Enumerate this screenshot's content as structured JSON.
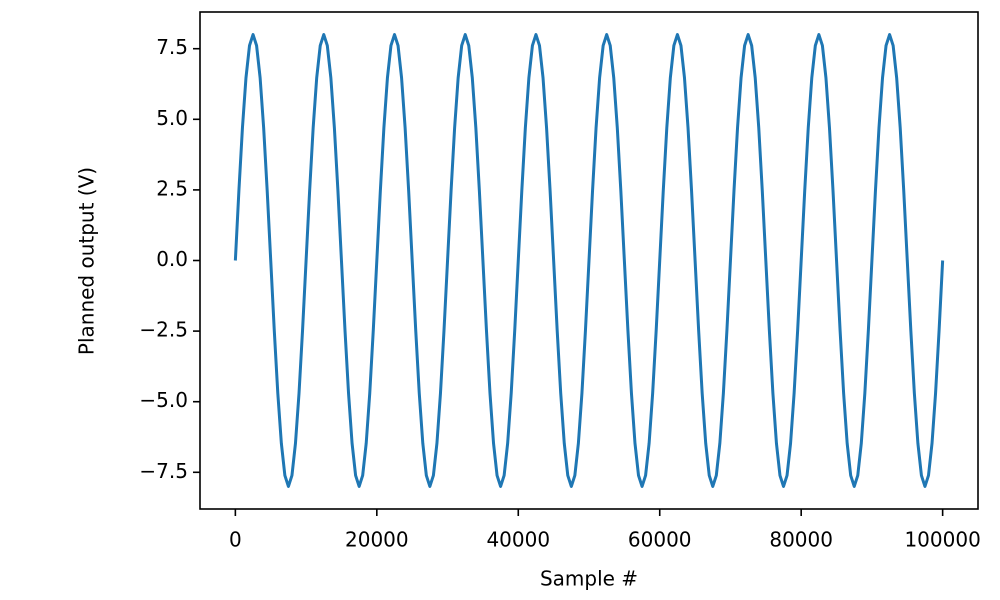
{
  "chart_data": {
    "type": "line",
    "x_label": "Sample #",
    "y_label": "Planned output (V)",
    "x": [
      0,
      500,
      1000,
      1500,
      2000,
      2500,
      3000,
      3500,
      4000,
      4500,
      5000,
      5500,
      6000,
      6500,
      7000,
      7500,
      8000,
      8500,
      9000,
      9500,
      10000,
      10500,
      11000,
      11500,
      12000,
      12500,
      13000,
      13500,
      14000,
      14500,
      15000,
      15500,
      16000,
      16500,
      17000,
      17500,
      18000,
      18500,
      19000,
      19500,
      20000,
      20500,
      21000,
      21500,
      22000,
      22500,
      23000,
      23500,
      24000,
      24500,
      25000,
      25500,
      26000,
      26500,
      27000,
      27500,
      28000,
      28500,
      29000,
      29500,
      30000,
      30500,
      31000,
      31500,
      32000,
      32500,
      33000,
      33500,
      34000,
      34500,
      35000,
      35500,
      36000,
      36500,
      37000,
      37500,
      38000,
      38500,
      39000,
      39500,
      40000,
      40500,
      41000,
      41500,
      42000,
      42500,
      43000,
      43500,
      44000,
      44500,
      45000,
      45500,
      46000,
      46500,
      47000,
      47500,
      48000,
      48500,
      49000,
      49500,
      50000,
      50500,
      51000,
      51500,
      52000,
      52500,
      53000,
      53500,
      54000,
      54500,
      55000,
      55500,
      56000,
      56500,
      57000,
      57500,
      58000,
      58500,
      59000,
      59500,
      60000,
      60500,
      61000,
      61500,
      62000,
      62500,
      63000,
      63500,
      64000,
      64500,
      65000,
      65500,
      66000,
      66500,
      67000,
      67500,
      68000,
      68500,
      69000,
      69500,
      70000,
      70500,
      71000,
      71500,
      72000,
      72500,
      73000,
      73500,
      74000,
      74500,
      75000,
      75500,
      76000,
      76500,
      77000,
      77500,
      78000,
      78500,
      79000,
      79500,
      80000,
      80500,
      81000,
      81500,
      82000,
      82500,
      83000,
      83500,
      84000,
      84500,
      85000,
      85500,
      86000,
      86500,
      87000,
      87500,
      88000,
      88500,
      89000,
      89500,
      90000,
      90500,
      91000,
      91500,
      92000,
      92500,
      93000,
      93500,
      94000,
      94500,
      95000,
      95500,
      96000,
      96500,
      97000,
      97500,
      98000,
      98500,
      99000,
      99500,
      100000
    ],
    "series": [
      {
        "color": "#1f77b4",
        "values": [
          0,
          2.47,
          4.7,
          6.47,
          7.61,
          8,
          7.61,
          6.47,
          4.7,
          2.47,
          0,
          -2.47,
          -4.7,
          -6.47,
          -7.61,
          -8,
          -7.61,
          -6.47,
          -4.7,
          -2.47,
          0,
          2.47,
          4.7,
          6.47,
          7.61,
          8,
          7.61,
          6.47,
          4.7,
          2.47,
          0,
          -2.47,
          -4.7,
          -6.47,
          -7.61,
          -8,
          -7.61,
          -6.47,
          -4.7,
          -2.47,
          0,
          2.47,
          4.7,
          6.47,
          7.61,
          8,
          7.61,
          6.47,
          4.7,
          2.47,
          0,
          -2.47,
          -4.7,
          -6.47,
          -7.61,
          -8,
          -7.61,
          -6.47,
          -4.7,
          -2.47,
          0,
          2.47,
          4.7,
          6.47,
          7.61,
          8,
          7.61,
          6.47,
          4.7,
          2.47,
          0,
          -2.47,
          -4.7,
          -6.47,
          -7.61,
          -8,
          -7.61,
          -6.47,
          -4.7,
          -2.47,
          0,
          2.47,
          4.7,
          6.47,
          7.61,
          8,
          7.61,
          6.47,
          4.7,
          2.47,
          0,
          -2.47,
          -4.7,
          -6.47,
          -7.61,
          -8,
          -7.61,
          -6.47,
          -4.7,
          -2.47,
          0,
          2.47,
          4.7,
          6.47,
          7.61,
          8,
          7.61,
          6.47,
          4.7,
          2.47,
          0,
          -2.47,
          -4.7,
          -6.47,
          -7.61,
          -8,
          -7.61,
          -6.47,
          -4.7,
          -2.47,
          0,
          2.47,
          4.7,
          6.47,
          7.61,
          8,
          7.61,
          6.47,
          4.7,
          2.47,
          0,
          -2.47,
          -4.7,
          -6.47,
          -7.61,
          -8,
          -7.61,
          -6.47,
          -4.7,
          -2.47,
          0,
          2.47,
          4.7,
          6.47,
          7.61,
          8,
          7.61,
          6.47,
          4.7,
          2.47,
          0,
          -2.47,
          -4.7,
          -6.47,
          -7.61,
          -8,
          -7.61,
          -6.47,
          -4.7,
          -2.47,
          0,
          2.47,
          4.7,
          6.47,
          7.61,
          8,
          7.61,
          6.47,
          4.7,
          2.47,
          0,
          -2.47,
          -4.7,
          -6.47,
          -7.61,
          -8,
          -7.61,
          -6.47,
          -4.7,
          -2.47,
          0,
          2.47,
          4.7,
          6.47,
          7.61,
          8,
          7.61,
          6.47,
          4.7,
          2.47,
          0,
          -2.47,
          -4.7,
          -6.47,
          -7.61,
          -8,
          -7.61,
          -6.47,
          -4.7,
          -2.47,
          0
        ]
      }
    ],
    "xlim": [
      -5000,
      105000
    ],
    "ylim": [
      -8.8,
      8.8
    ],
    "xticks": [
      0,
      20000,
      40000,
      60000,
      80000,
      100000
    ],
    "yticks": [
      {
        "value": -7.5,
        "label": "−7.5"
      },
      {
        "value": -5,
        "label": "−5.0"
      },
      {
        "value": -2.5,
        "label": "−2.5"
      },
      {
        "value": 0,
        "label": "0.0"
      },
      2.5,
      {
        "value": 5,
        "label": "5.0"
      },
      7.5
    ],
    "grid": false
  }
}
